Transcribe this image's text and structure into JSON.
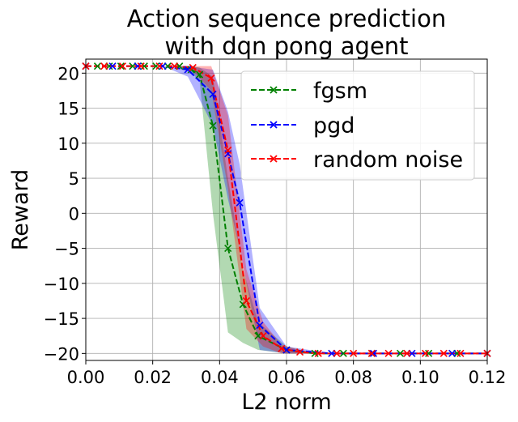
{
  "chart_data": {
    "type": "line",
    "title_lines": [
      "Action sequence prediction",
      "with dqn pong agent"
    ],
    "xlabel": "L2 norm",
    "ylabel": "Reward",
    "xlim": [
      0.0,
      0.12
    ],
    "ylim": [
      -21,
      22
    ],
    "grid": true,
    "legend_position": "top-right",
    "xticks": [
      0.0,
      0.02,
      0.04,
      0.06,
      0.08,
      0.1,
      0.12
    ],
    "xtick_labels": [
      "0.00",
      "0.02",
      "0.04",
      "0.06",
      "0.08",
      "0.10",
      "0.12"
    ],
    "yticks": [
      20,
      15,
      10,
      5,
      0,
      -5,
      -10,
      -15,
      -20
    ],
    "ytick_labels": [
      "20",
      "15",
      "10",
      "5",
      "0",
      "−5",
      "−10",
      "−15",
      "−20"
    ],
    "series": [
      {
        "name": "fgsm",
        "color": "#008000",
        "x": [
          0.0,
          0.0035,
          0.007,
          0.0105,
          0.014,
          0.0175,
          0.021,
          0.0245,
          0.028,
          0.0315,
          0.034,
          0.038,
          0.0425,
          0.047,
          0.0515,
          0.06,
          0.0685,
          0.077,
          0.0855,
          0.094,
          0.1025,
          0.111,
          0.12
        ],
        "y": [
          21,
          21,
          21,
          21,
          21,
          21,
          21,
          21,
          21,
          20.5,
          19.8,
          12.5,
          -5.0,
          -13.0,
          -17.5,
          -19.5,
          -20,
          -20,
          -20,
          -20,
          -20,
          -20,
          -20
        ],
        "lower": [
          21,
          21,
          21,
          21,
          21,
          21,
          21,
          21,
          21,
          20.0,
          19.0,
          0.0,
          -17.0,
          -18.5,
          -19.5,
          -20,
          -20,
          -20,
          -20,
          -20,
          -20,
          -20,
          -20
        ],
        "upper": [
          21,
          21,
          21,
          21,
          21,
          21,
          21,
          21,
          21,
          21,
          20.8,
          19.5,
          5.0,
          -8.0,
          -15.5,
          -19,
          -20,
          -20,
          -20,
          -20,
          -20,
          -20,
          -20
        ]
      },
      {
        "name": "pgd",
        "color": "#0000ff",
        "x": [
          0.0,
          0.008,
          0.0155,
          0.023,
          0.0305,
          0.038,
          0.0425,
          0.046,
          0.052,
          0.06,
          0.0735,
          0.086,
          0.0975,
          0.1095,
          0.12
        ],
        "y": [
          21,
          21,
          21,
          21,
          20.5,
          17.0,
          8.5,
          1.5,
          -16.0,
          -19.5,
          -20,
          -20,
          -20,
          -20,
          -20
        ],
        "lower": [
          21,
          21,
          21,
          21,
          19.5,
          12.5,
          2.0,
          -5.0,
          -19.5,
          -20,
          -20,
          -20,
          -20,
          -20,
          -20
        ],
        "upper": [
          21,
          21,
          21,
          21,
          21,
          20.5,
          14.5,
          7.0,
          -13.5,
          -19,
          -20,
          -20,
          -20,
          -20,
          -20
        ]
      },
      {
        "name": "random noise",
        "color": "#ff0000",
        "x": [
          0.0,
          0.0055,
          0.011,
          0.0165,
          0.022,
          0.0265,
          0.032,
          0.0375,
          0.0425,
          0.048,
          0.053,
          0.0585,
          0.064,
          0.0695,
          0.075,
          0.08,
          0.0855,
          0.0905,
          0.096,
          0.1015,
          0.107,
          0.112,
          0.12
        ],
        "y": [
          21,
          21,
          21,
          21,
          21,
          21,
          20.8,
          19.3,
          9.0,
          -12.5,
          -17.5,
          -19.3,
          -19.8,
          -20,
          -20,
          -20,
          -20,
          -20,
          -20,
          -20,
          -20,
          -20,
          -20
        ],
        "lower": [
          21,
          21,
          21,
          21,
          21,
          21,
          20.3,
          17.5,
          3.5,
          -16.5,
          -19.0,
          -20,
          -20,
          -20,
          -20,
          -20,
          -20,
          -20,
          -20,
          -20,
          -20,
          -20,
          -20
        ],
        "upper": [
          21,
          21,
          21,
          21,
          21,
          21,
          21,
          21,
          14.0,
          -8.0,
          -15.5,
          -18.8,
          -19.5,
          -20,
          -20,
          -20,
          -20,
          -20,
          -20,
          -20,
          -20,
          -20,
          -20
        ]
      }
    ]
  }
}
